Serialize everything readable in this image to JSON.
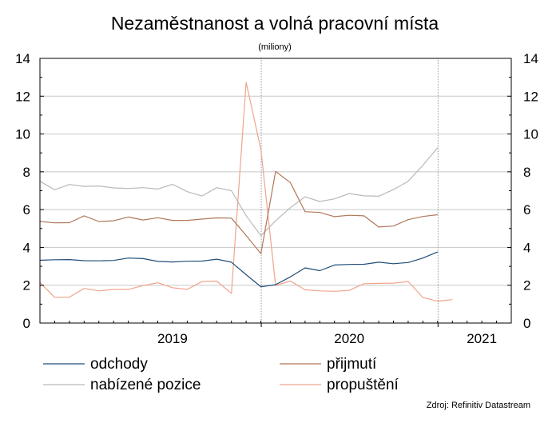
{
  "chart_data": {
    "type": "line",
    "title": "Nezaměstnanost a volná pracovní místa",
    "subtitle": "(miliony)",
    "ylim": [
      0,
      14
    ],
    "yticks": [
      0,
      2,
      4,
      6,
      8,
      10,
      12,
      14
    ],
    "ytick_labels": [
      "0",
      "2",
      "4",
      "6",
      "8",
      "10",
      "12",
      "14"
    ],
    "xlim": [
      "2018-09",
      "2021-05"
    ],
    "xtick_labels": [
      {
        "label": "2019",
        "x": "2019-06"
      },
      {
        "label": "2020",
        "x": "2020-06"
      },
      {
        "label": "2021",
        "x": "2021-03"
      }
    ],
    "year_boundaries": [
      "2019-12",
      "2020-12"
    ],
    "grid": "horizontal",
    "legend_position": "bottom",
    "source": "Zdroj: Refinitiv Datastream",
    "x": [
      "2018-09",
      "2018-10",
      "2018-11",
      "2018-12",
      "2019-01",
      "2019-02",
      "2019-03",
      "2019-04",
      "2019-05",
      "2019-06",
      "2019-07",
      "2019-08",
      "2019-09",
      "2019-10",
      "2019-11",
      "2019-12",
      "2020-01",
      "2020-02",
      "2020-03",
      "2020-04",
      "2020-05",
      "2020-06",
      "2020-07",
      "2020-08",
      "2020-09",
      "2020-10",
      "2020-11",
      "2020-12",
      "2021-01",
      "2021-02",
      "2021-03"
    ],
    "series": [
      {
        "name": "odchody",
        "color": "#1f4e79",
        "values": [
          3.32,
          3.35,
          3.36,
          3.3,
          3.29,
          3.31,
          3.44,
          3.41,
          3.26,
          3.23,
          3.27,
          3.28,
          3.38,
          3.22,
          2.56,
          1.92,
          2.03,
          2.44,
          2.92,
          2.77,
          3.07,
          3.1,
          3.11,
          3.22,
          3.14,
          3.2,
          3.44,
          3.76,
          null,
          null,
          null
        ]
      },
      {
        "name": "přijmutí",
        "color": "#b0785a",
        "values": [
          5.37,
          5.3,
          5.31,
          5.67,
          5.37,
          5.41,
          5.61,
          5.45,
          5.57,
          5.43,
          5.43,
          5.5,
          5.56,
          5.55,
          4.63,
          3.67,
          8.02,
          7.43,
          5.89,
          5.85,
          5.63,
          5.7,
          5.67,
          5.08,
          5.13,
          5.47,
          5.64,
          5.73,
          null,
          null,
          null
        ]
      },
      {
        "name": "nabízené pozice",
        "color": "#b9b9b9",
        "values": [
          7.5,
          7.05,
          7.33,
          7.23,
          7.25,
          7.15,
          7.12,
          7.16,
          7.09,
          7.34,
          6.95,
          6.72,
          7.16,
          7.0,
          5.68,
          4.62,
          5.41,
          6.1,
          6.68,
          6.43,
          6.57,
          6.85,
          6.73,
          6.71,
          7.06,
          7.5,
          8.35,
          9.28,
          null,
          null,
          null
        ]
      },
      {
        "name": "propuštění",
        "color": "#f0a48c",
        "values": [
          2.15,
          1.36,
          1.37,
          1.83,
          1.7,
          1.78,
          1.78,
          1.98,
          2.13,
          1.87,
          1.78,
          2.19,
          2.22,
          1.57,
          12.73,
          9.18,
          1.99,
          2.22,
          1.76,
          1.7,
          1.68,
          1.73,
          2.08,
          2.1,
          2.11,
          2.2,
          1.35,
          1.16,
          1.24,
          null,
          null
        ]
      }
    ]
  }
}
